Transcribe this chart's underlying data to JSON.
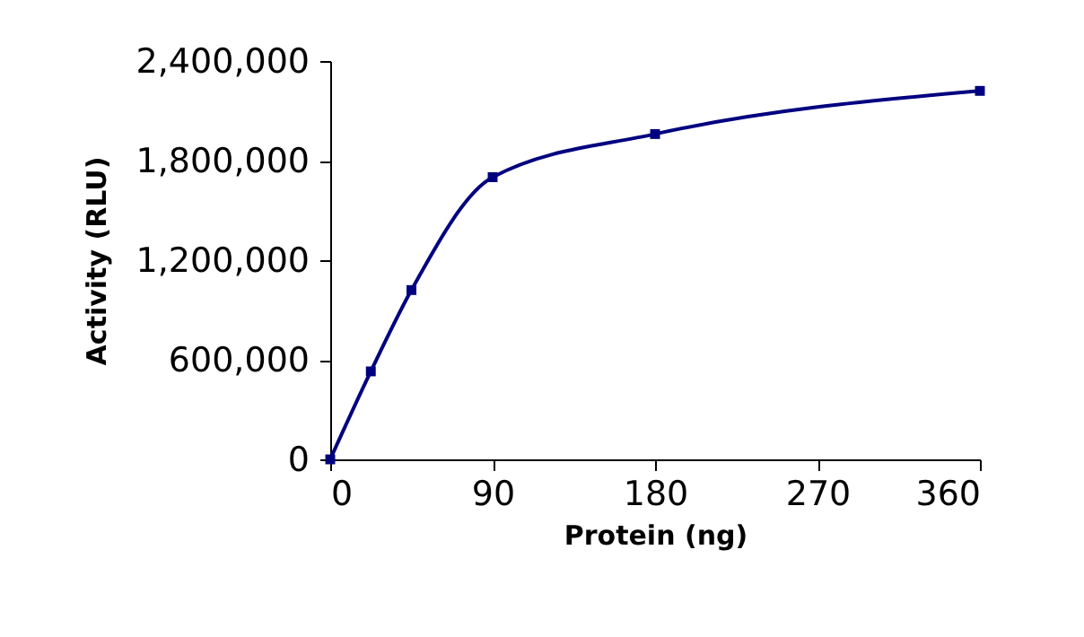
{
  "chart_data": {
    "type": "line",
    "xlabel": "Protein (ng)",
    "ylabel": "Activity (RLU)",
    "x": [
      0,
      22.5,
      45,
      90,
      180,
      360
    ],
    "series": [
      {
        "color": "#000080",
        "values": [
          0,
          530000,
          1020000,
          1700000,
          1960000,
          2220000
        ]
      }
    ],
    "xlim": [
      0,
      360
    ],
    "xticks": [
      0,
      90,
      180,
      270,
      360
    ],
    "ylim": [
      0,
      2400000
    ],
    "yticks": [
      0,
      {
        "value": 600000,
        "label": "600,000"
      },
      {
        "value": 1200000,
        "label": "1,200,000"
      },
      {
        "value": 1800000,
        "label": "1,800,000"
      },
      {
        "value": 2400000,
        "label": "2,400,000"
      }
    ],
    "marker": "square",
    "line_style": "solid",
    "grid": false
  }
}
